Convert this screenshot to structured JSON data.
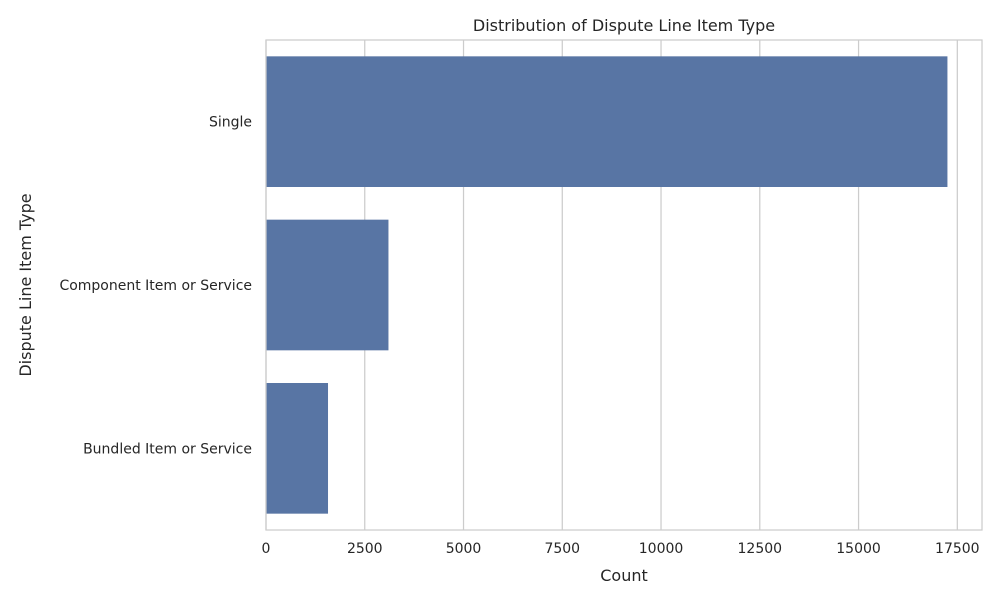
{
  "chart_data": {
    "type": "bar",
    "orientation": "horizontal",
    "title": "Distribution of Dispute Line Item Type",
    "xlabel": "Count",
    "ylabel": "Dispute Line Item Type",
    "categories": [
      "Single",
      "Component Item or Service",
      "Bundled Item or Service"
    ],
    "values": [
      17250,
      3100,
      1570
    ],
    "xlim": [
      0,
      18125
    ],
    "xticks": [
      0,
      2500,
      5000,
      7500,
      10000,
      12500,
      15000,
      17500
    ],
    "grid": true,
    "bar_color": "#5875a4",
    "grid_color": "#cccccc"
  }
}
